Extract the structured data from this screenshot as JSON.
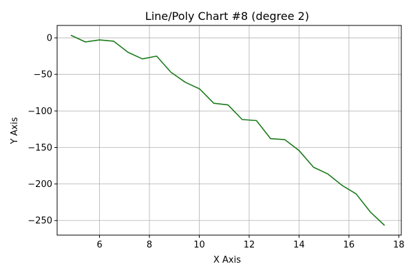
{
  "chart_data": {
    "type": "line",
    "title": "Line/Poly Chart #8 (degree 2)",
    "xlabel": "X Axis",
    "ylabel": "Y Axis",
    "xlim": [
      4.3,
      18.1
    ],
    "ylim": [
      -270,
      17
    ],
    "xticks": [
      6,
      8,
      10,
      12,
      14,
      16,
      18
    ],
    "yticks": [
      0,
      -50,
      -100,
      -150,
      -200,
      -250
    ],
    "grid": true,
    "line_color": "#1a7a1a",
    "series": [
      {
        "x": [
          4.85,
          5.43,
          6.0,
          6.57,
          7.14,
          7.72,
          8.29,
          8.86,
          9.44,
          10.01,
          10.58,
          11.15,
          11.72,
          12.29,
          12.86,
          13.43,
          14.0,
          14.58,
          15.15,
          15.72,
          16.29,
          16.86,
          17.43
        ],
        "y": [
          3.6,
          -5.6,
          -2.8,
          -4.6,
          -19.7,
          -28.8,
          -25.0,
          -47.0,
          -60.8,
          -69.8,
          -89.5,
          -91.7,
          -111.8,
          -113.2,
          -138.0,
          -139.3,
          -154.2,
          -177.1,
          -186.2,
          -201.8,
          -213.6,
          -238.4,
          -256.7
        ]
      }
    ]
  }
}
